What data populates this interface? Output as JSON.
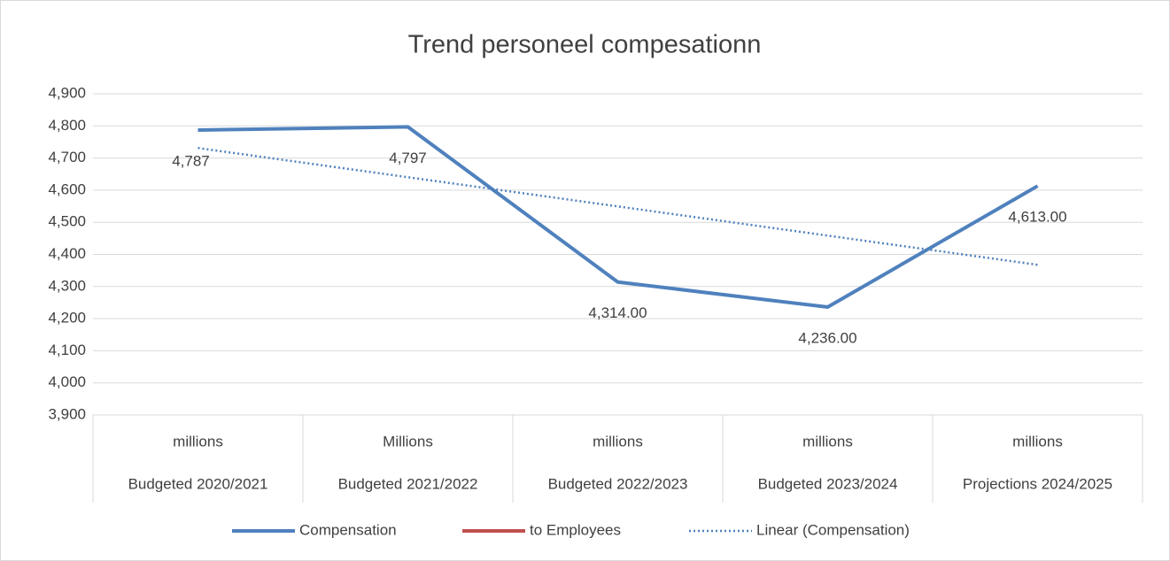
{
  "chart_data": {
    "type": "line",
    "title": "Trend personeel compesationn",
    "categories": [
      "Budgeted 2020/2021",
      "Budgeted 2021/2022",
      "Budgeted 2022/2023",
      "Budgeted 2023/2024",
      "Projections 2024/2025"
    ],
    "category_units": [
      "millions",
      "Millions",
      "millions",
      "millions",
      "millions"
    ],
    "series": [
      {
        "name": "Compensation",
        "color": "#4f81bd",
        "style": "solid",
        "values": [
          4787,
          4797,
          4314,
          4236,
          4613
        ],
        "value_labels": [
          "4,787",
          "4,797",
          "4,314.00",
          "4,236.00",
          "4,613.00"
        ]
      },
      {
        "name": "to Employees",
        "color": "#c0504d",
        "style": "solid",
        "values": [
          null,
          null,
          null,
          null,
          null
        ]
      },
      {
        "name": "Linear (Compensation)",
        "color": "#4f81bd",
        "style": "dotted",
        "values": [
          4731.2,
          4640.3,
          4549.4,
          4458.5,
          4367.6
        ]
      }
    ],
    "ylim": [
      3900,
      4900
    ],
    "yticks": [
      {
        "value": 3900,
        "label": "3,900"
      },
      {
        "value": 4000,
        "label": "4,000"
      },
      {
        "value": 4100,
        "label": "4,100"
      },
      {
        "value": 4200,
        "label": "4,200"
      },
      {
        "value": 4300,
        "label": "4,300"
      },
      {
        "value": 4400,
        "label": "4,400"
      },
      {
        "value": 4500,
        "label": "4,500"
      },
      {
        "value": 4600,
        "label": "4,600"
      },
      {
        "value": 4700,
        "label": "4,700"
      },
      {
        "value": 4800,
        "label": "4,800"
      },
      {
        "value": 4900,
        "label": "4,900"
      }
    ],
    "grid": true,
    "legend": "bottom"
  }
}
